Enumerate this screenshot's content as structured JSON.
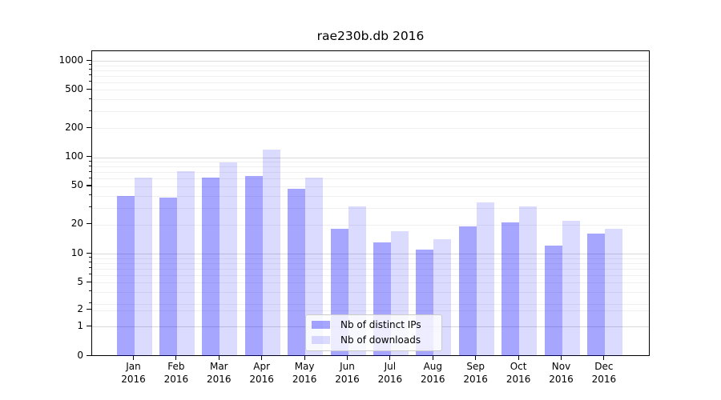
{
  "chart_data": {
    "type": "bar",
    "title": "rae230b.db 2016",
    "categories": [
      "Jan",
      "Feb",
      "Mar",
      "Apr",
      "May",
      "Jun",
      "Jul",
      "Aug",
      "Sep",
      "Oct",
      "Nov",
      "Dec"
    ],
    "category_year": "2016",
    "series": [
      {
        "name": "Nb of distinct IPs",
        "color": "rgba(0,0,255,0.35)",
        "values": [
          40,
          38,
          61,
          64,
          47,
          18,
          13,
          11,
          19,
          21,
          12,
          16
        ]
      },
      {
        "name": "Nb of downloads",
        "color": "rgba(0,0,255,0.14)",
        "values": [
          62,
          72,
          88,
          120,
          62,
          31,
          17,
          14,
          34,
          31,
          22,
          18
        ]
      }
    ],
    "yaxis": {
      "scale": "symlog",
      "ticks": [
        0,
        1,
        2,
        5,
        10,
        20,
        50,
        100,
        200,
        500,
        1000
      ],
      "range_top": 1270
    },
    "xlabel": "",
    "ylabel": "",
    "grid": "on",
    "legend_position": "lower center inside plot",
    "colors": {
      "grid_major": "#d9d9d9",
      "grid_minor": "#f0f0f1",
      "axis": "#000000"
    }
  }
}
